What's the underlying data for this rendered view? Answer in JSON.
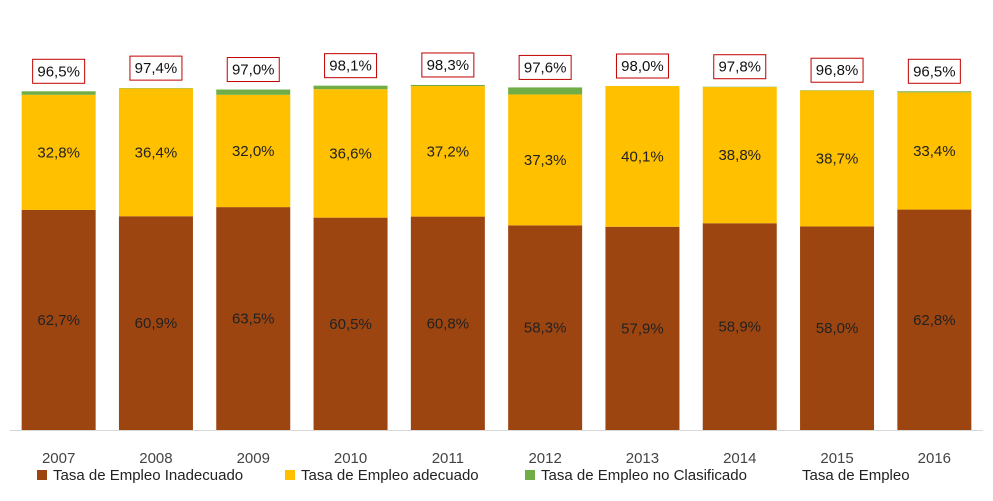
{
  "chart_data": {
    "type": "bar",
    "stacked": true,
    "categories": [
      "2007",
      "2008",
      "2009",
      "2010",
      "2011",
      "2012",
      "2013",
      "2014",
      "2015",
      "2016"
    ],
    "series": [
      {
        "name": "Tasa de Empleo Inadecuado",
        "color": "#9c4510",
        "values": [
          62.7,
          60.9,
          63.5,
          60.5,
          60.8,
          58.3,
          57.9,
          58.9,
          58.0,
          62.8
        ],
        "labels": [
          "62,7%",
          "60,9%",
          "63,5%",
          "60,5%",
          "60,8%",
          "58,3%",
          "57,9%",
          "58,9%",
          "58,0%",
          "62,8%"
        ]
      },
      {
        "name": "Tasa de Empleo adecuado",
        "color": "#ffc000",
        "values": [
          32.8,
          36.4,
          32.0,
          36.6,
          37.2,
          37.3,
          40.1,
          38.8,
          38.7,
          33.4
        ],
        "labels": [
          "32,8%",
          "36,4%",
          "32,0%",
          "36,6%",
          "37,2%",
          "37,3%",
          "40,1%",
          "38,8%",
          "38,7%",
          "33,4%"
        ]
      },
      {
        "name": "Tasa de Empleo no Clasificado",
        "color": "#70ad47",
        "values": [
          1.0,
          0.1,
          1.5,
          1.0,
          0.3,
          2.0,
          0.0,
          0.1,
          0.1,
          0.3
        ]
      }
    ],
    "total": {
      "name": "Tasa de Empleo",
      "values": [
        96.5,
        97.4,
        97.0,
        98.1,
        98.3,
        97.6,
        98.0,
        97.8,
        96.8,
        96.5
      ],
      "labels": [
        "96,5%",
        "97,4%",
        "97,0%",
        "98,1%",
        "98,3%",
        "97,6%",
        "98,0%",
        "97,8%",
        "96,8%",
        "96,5%"
      ],
      "label_border_color": "#c00000"
    },
    "ylim": [
      0,
      100
    ],
    "grid": false,
    "legend": "bottom",
    "xlabel": "",
    "ylabel": "",
    "title": ""
  }
}
